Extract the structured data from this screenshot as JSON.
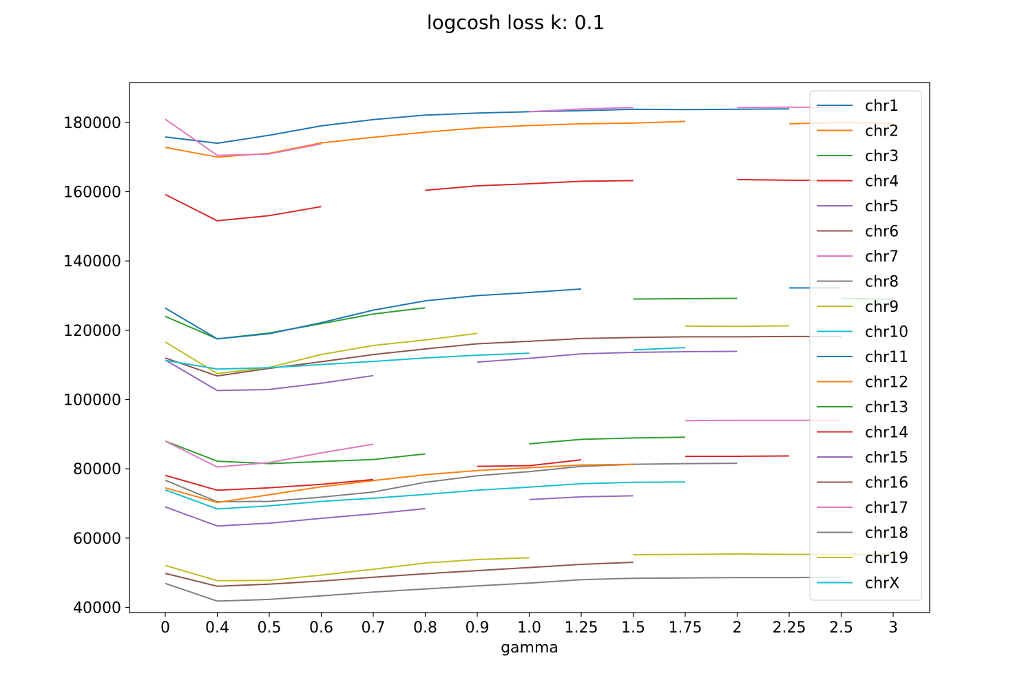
{
  "chart_data": {
    "type": "line",
    "title": "logcosh loss k: 0.1",
    "xlabel": "gamma",
    "ylabel": "",
    "categories": [
      "0",
      "0.4",
      "0.5",
      "0.6",
      "0.7",
      "0.8",
      "0.9",
      "1.0",
      "1.25",
      "1.5",
      "1.75",
      "2",
      "2.25",
      "2.5",
      "3"
    ],
    "ylim": [
      38500,
      191500
    ],
    "yticks": [
      40000,
      60000,
      80000,
      100000,
      120000,
      140000,
      160000,
      180000
    ],
    "grid": false,
    "legend_position": "top-right",
    "series": [
      {
        "name": "chr1",
        "color": "#1f77b4",
        "values": [
          175800,
          174000,
          176300,
          179000,
          180800,
          182100,
          182700,
          183100,
          183400,
          183800,
          183700,
          183800,
          183900,
          null,
          null
        ]
      },
      {
        "name": "chr2",
        "color": "#ff7f0e",
        "values": [
          172800,
          170000,
          171100,
          174100,
          175700,
          177200,
          178400,
          179100,
          179600,
          179800,
          180300,
          null,
          179600,
          180000,
          179700
        ]
      },
      {
        "name": "chr3",
        "color": "#2ca02c",
        "values": [
          124000,
          117500,
          119200,
          121900,
          124700,
          126500,
          null,
          null,
          null,
          129000,
          129100,
          129200,
          null,
          129200,
          128900
        ]
      },
      {
        "name": "chr4",
        "color": "#d62728",
        "values": [
          159200,
          151600,
          153100,
          155700,
          null,
          160400,
          161700,
          162300,
          163000,
          163200,
          null,
          163500,
          163300,
          163300,
          null
        ]
      },
      {
        "name": "chr5",
        "color": "#9467bd",
        "values": [
          111400,
          102600,
          102900,
          104700,
          106900,
          null,
          110800,
          111900,
          113200,
          113600,
          113800,
          113900,
          null,
          null,
          null
        ]
      },
      {
        "name": "chr6",
        "color": "#8c564b",
        "values": [
          112000,
          106800,
          109000,
          110900,
          113000,
          114600,
          116100,
          116800,
          117600,
          117900,
          118100,
          118100,
          118200,
          118200,
          null
        ]
      },
      {
        "name": "chr7",
        "color": "#e377c2",
        "values": [
          180900,
          170500,
          170900,
          173800,
          null,
          null,
          null,
          183100,
          183900,
          184300,
          null,
          184300,
          184400,
          184300,
          null
        ]
      },
      {
        "name": "chr8",
        "color": "#7f7f7f",
        "values": [
          76700,
          70500,
          70600,
          71800,
          73300,
          76100,
          78000,
          79200,
          80700,
          81300,
          81500,
          81600,
          null,
          null,
          null
        ]
      },
      {
        "name": "chr9",
        "color": "#bcbd22",
        "values": [
          116600,
          107500,
          109300,
          113000,
          115600,
          117200,
          119100,
          null,
          null,
          null,
          121200,
          121100,
          121300,
          null,
          null
        ]
      },
      {
        "name": "chr10",
        "color": "#17becf",
        "values": [
          111300,
          108800,
          109200,
          110100,
          111000,
          112000,
          112800,
          113400,
          null,
          114300,
          115000,
          null,
          null,
          null,
          null
        ]
      },
      {
        "name": "chr11",
        "color": "#1f77b4",
        "values": [
          126400,
          117500,
          119000,
          122200,
          125800,
          128500,
          130000,
          130900,
          131900,
          null,
          null,
          null,
          132200,
          132200,
          null
        ]
      },
      {
        "name": "chr12",
        "color": "#ff7f0e",
        "values": [
          74500,
          70300,
          72500,
          74800,
          76600,
          78300,
          79500,
          80300,
          81100,
          81300,
          null,
          null,
          null,
          null,
          null
        ]
      },
      {
        "name": "chr13",
        "color": "#2ca02c",
        "values": [
          88000,
          82200,
          81500,
          82100,
          82700,
          84300,
          null,
          87200,
          88500,
          88900,
          89100,
          null,
          null,
          null,
          null
        ]
      },
      {
        "name": "chr14",
        "color": "#d62728",
        "values": [
          78100,
          73800,
          74500,
          75500,
          76900,
          null,
          80700,
          80900,
          82600,
          null,
          83600,
          83600,
          83700,
          null,
          null
        ]
      },
      {
        "name": "chr15",
        "color": "#9467bd",
        "values": [
          69000,
          63500,
          64300,
          65700,
          67000,
          68500,
          null,
          71100,
          71900,
          72200,
          null,
          null,
          null,
          null,
          null
        ]
      },
      {
        "name": "chr16",
        "color": "#8c564b",
        "values": [
          49800,
          46100,
          46700,
          47600,
          48700,
          49700,
          50600,
          51500,
          52400,
          53000,
          null,
          null,
          null,
          null,
          null
        ]
      },
      {
        "name": "chr17",
        "color": "#e377c2",
        "values": [
          88000,
          80500,
          81800,
          84600,
          87100,
          null,
          null,
          null,
          null,
          null,
          93900,
          94000,
          94000,
          94000,
          null
        ]
      },
      {
        "name": "chr18",
        "color": "#7f7f7f",
        "values": [
          46900,
          41800,
          42300,
          43300,
          44400,
          45300,
          46200,
          47000,
          48000,
          48400,
          48500,
          48600,
          48600,
          48700,
          null
        ]
      },
      {
        "name": "chr19",
        "color": "#bcbd22",
        "values": [
          52100,
          47700,
          47800,
          49300,
          51000,
          52800,
          53800,
          54300,
          null,
          55200,
          55300,
          55400,
          55300,
          55300,
          55300
        ]
      },
      {
        "name": "chrX",
        "color": "#17becf",
        "values": [
          73900,
          68400,
          69300,
          70600,
          71500,
          72600,
          73800,
          74700,
          75700,
          76100,
          76200,
          null,
          null,
          null,
          null
        ]
      }
    ]
  }
}
